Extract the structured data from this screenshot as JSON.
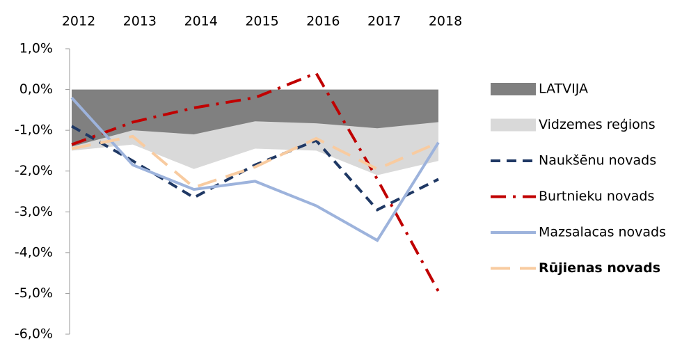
{
  "chart_data": {
    "type": "line",
    "categories": [
      "2012",
      "2013",
      "2014",
      "2015",
      "2016",
      "2017",
      "2018"
    ],
    "ylim": [
      -6,
      1
    ],
    "yticks": [
      {
        "value": 1,
        "label": "1,0%"
      },
      {
        "value": 0,
        "label": "0,0%"
      },
      {
        "value": -1,
        "label": "-1,0%"
      },
      {
        "value": -2,
        "label": "-2,0%"
      },
      {
        "value": -3,
        "label": "-3,0%"
      },
      {
        "value": -4,
        "label": "-4,0%"
      },
      {
        "value": -5,
        "label": "-5,0%"
      },
      {
        "value": -6,
        "label": "-6,0%"
      }
    ],
    "legend": "right",
    "series": [
      {
        "name": "Vidzemes reģions",
        "kind": "area",
        "color": "#d9d9d9",
        "values": [
          -1.5,
          -1.35,
          -1.95,
          -1.45,
          -1.5,
          -2.1,
          -1.75
        ]
      },
      {
        "name": "LATVIJA",
        "kind": "area",
        "color": "#808080",
        "values": [
          -1.4,
          -1.0,
          -1.1,
          -0.78,
          -0.83,
          -0.95,
          -0.8
        ]
      },
      {
        "name": "Naukšēnu novads",
        "kind": "line",
        "dash": "dash",
        "color": "#1f3864",
        "values": [
          -0.9,
          -1.75,
          -2.65,
          -1.85,
          -1.25,
          -2.95,
          -2.2
        ]
      },
      {
        "name": "Burtnieku novads",
        "kind": "line",
        "dash": "dashdot",
        "color": "#c00000",
        "values": [
          -1.35,
          -0.8,
          -0.45,
          -0.2,
          0.4,
          -2.2,
          -4.95
        ]
      },
      {
        "name": "Mazsalacas novads",
        "kind": "line",
        "dash": "solid",
        "color": "#9db3dc",
        "values": [
          -0.2,
          -1.85,
          -2.45,
          -2.25,
          -2.85,
          -3.7,
          -1.3
        ]
      },
      {
        "name": "Rūjienas novads",
        "kind": "line",
        "dash": "longdash",
        "color": "#f8cba0",
        "bold": true,
        "values": [
          -1.45,
          -1.15,
          -2.4,
          -1.9,
          -1.2,
          -1.95,
          -1.3
        ]
      }
    ]
  }
}
